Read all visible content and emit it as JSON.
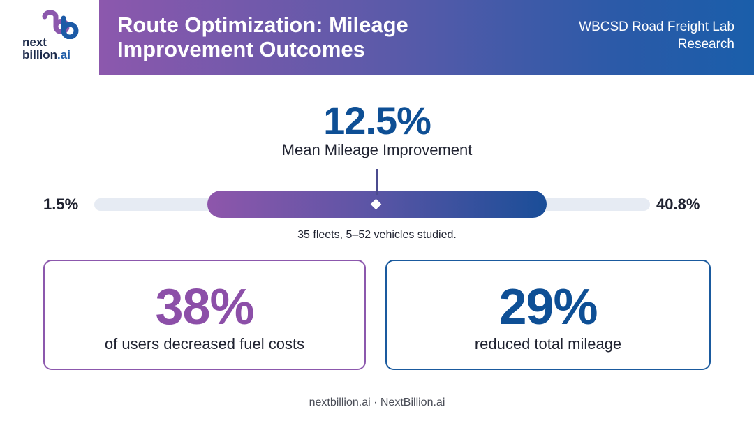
{
  "brand": {
    "logo_line1": "next",
    "logo_line2_main": "billion",
    "logo_line2_suffix": ".ai",
    "logo_icon": "nextbillion-logo-icon"
  },
  "header": {
    "title": "Route Optimization: Mileage Improvement Outcomes",
    "source": "WBCSD Road Freight Lab Research"
  },
  "headline": {
    "value": "12.5%",
    "label": "Mean Mileage Improvement"
  },
  "range": {
    "min_label": "1.5%",
    "max_label": "40.8%",
    "min": 1.5,
    "max": 40.8,
    "mean": 12.5,
    "note": "35 fleets, 5–52 vehicles studied."
  },
  "cards": [
    {
      "value": "38%",
      "label": "of users decreased fuel costs"
    },
    {
      "value": "29%",
      "label": "reduced total mileage"
    }
  ],
  "footer": "nextbillion.ai · NextBillion.ai",
  "colors": {
    "purple": "#8c58ad",
    "blue": "#0e4f95",
    "track": "#e6ebf3"
  }
}
